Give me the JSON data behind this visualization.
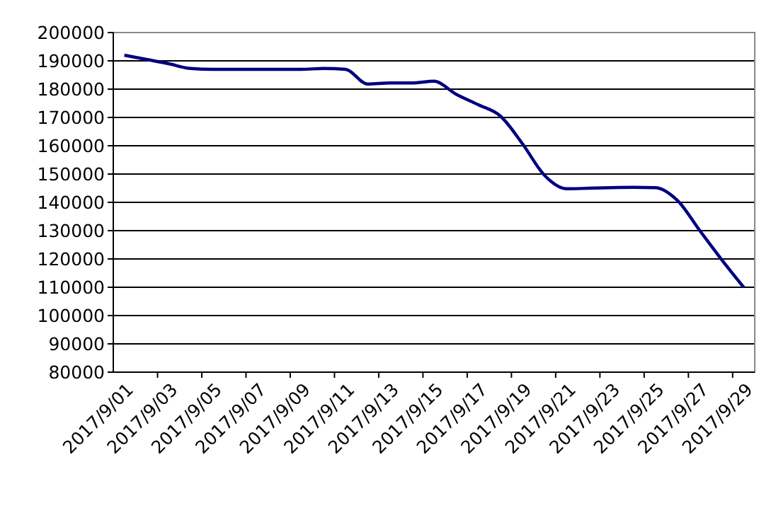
{
  "chart_data": {
    "type": "line",
    "categories": [
      "2017/9/01",
      null,
      "2017/9/03",
      null,
      "2017/9/05",
      null,
      "2017/9/07",
      null,
      "2017/9/09",
      null,
      "2017/9/11",
      null,
      "2017/9/13",
      null,
      "2017/9/15",
      null,
      "2017/9/17",
      null,
      "2017/9/19",
      null,
      "2017/9/21",
      null,
      "2017/9/23",
      null,
      "2017/9/25",
      null,
      "2017/9/27",
      null,
      "2017/9/29"
    ],
    "series": [
      {
        "color": "#000080",
        "values": [
          192000,
          190500,
          189000,
          187300,
          187000,
          187000,
          187000,
          187000,
          187000,
          187300,
          187000,
          181800,
          182200,
          182200,
          182800,
          178200,
          174500,
          170500,
          160700,
          149500,
          144800,
          145000,
          145200,
          145300,
          145200,
          140700,
          130200,
          119800,
          110000
        ]
      }
    ],
    "ylim": [
      80000,
      200000
    ],
    "yticks": [
      80000,
      90000,
      100000,
      110000,
      120000,
      130000,
      140000,
      150000,
      160000,
      170000,
      180000,
      190000,
      200000
    ],
    "grid": "y",
    "marker": "none",
    "line_style": "solid"
  }
}
